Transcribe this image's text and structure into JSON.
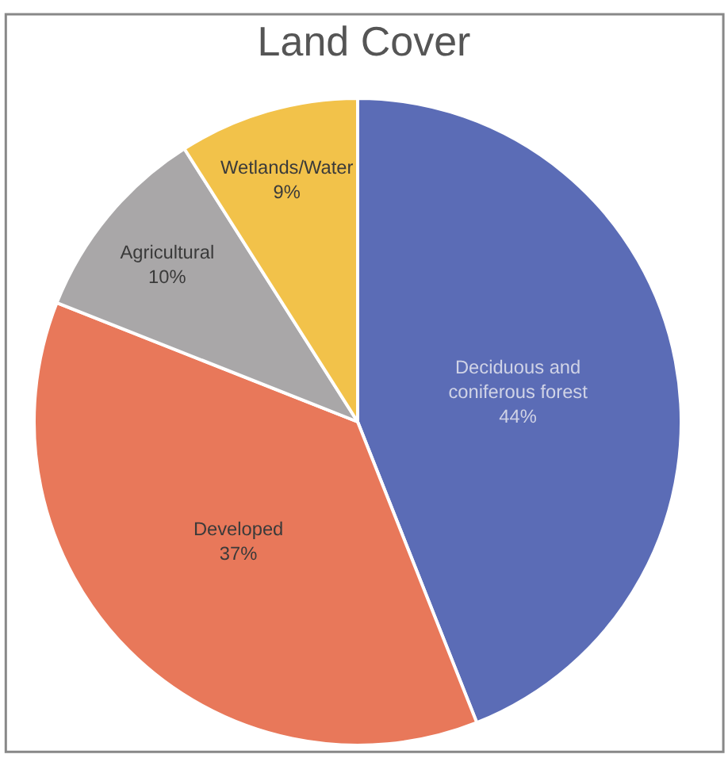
{
  "chart_data": {
    "type": "pie",
    "title": "Land Cover",
    "categories": [
      "Deciduous and coniferous forest",
      "Developed",
      "Agricultural",
      "Wetlands/Water"
    ],
    "values": [
      44,
      37,
      10,
      9
    ],
    "value_labels": [
      "44%",
      "37%",
      "10%",
      "9%"
    ],
    "colors": [
      "#5b6cb6",
      "#e8785a",
      "#a9a7a8",
      "#f2c24a"
    ],
    "legend": false
  }
}
